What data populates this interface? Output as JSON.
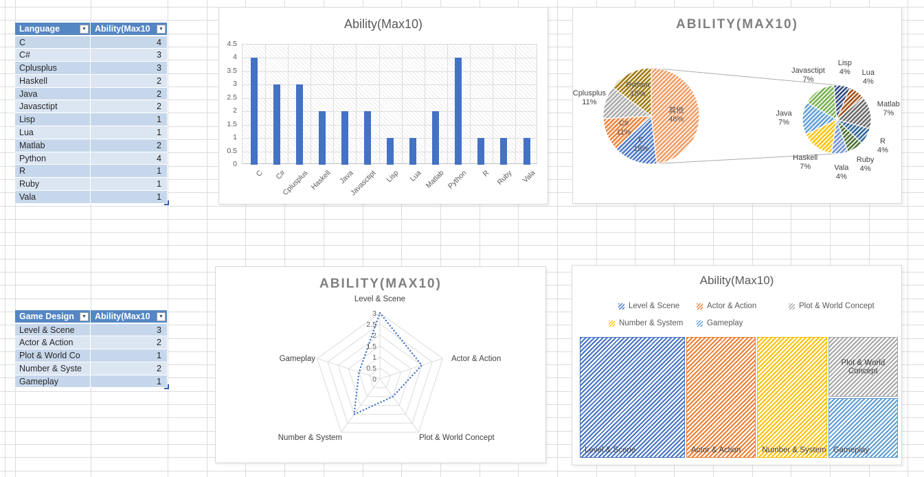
{
  "icons": {
    "filter_dropdown": "▼"
  },
  "colors": {
    "table_header_bg": "#5586C4",
    "table_band_dark": "#C7D7EB",
    "table_band_light": "#DCE6F3",
    "gridline": "#D9DCE0",
    "chart_title": "#595959",
    "accent_blue": "#4472C4",
    "accent_orange": "#ED7D31",
    "accent_gray": "#A5A5A5",
    "accent_gold": "#FFC000",
    "accent_lightblue": "#5B9BD5",
    "accent_green": "#70AD47"
  },
  "tables": {
    "language_table": {
      "headers": [
        "Language",
        "Ability(Max10"
      ],
      "rows": [
        [
          "C",
          "4"
        ],
        [
          "C#",
          "3"
        ],
        [
          "Cplusplus",
          "3"
        ],
        [
          "Haskell",
          "2"
        ],
        [
          "Java",
          "2"
        ],
        [
          "Javasctipt",
          "2"
        ],
        [
          "Lisp",
          "1"
        ],
        [
          "Lua",
          "1"
        ],
        [
          "Matlab",
          "2"
        ],
        [
          "Python",
          "4"
        ],
        [
          "R",
          "1"
        ],
        [
          "Ruby",
          "1"
        ],
        [
          "Vala",
          "1"
        ]
      ]
    },
    "game_table": {
      "headers": [
        "Game Design",
        "Ability(Max10"
      ],
      "rows": [
        [
          "Level & Scene",
          "3"
        ],
        [
          "Actor & Action",
          "2"
        ],
        [
          "Plot & World Co",
          "1"
        ],
        [
          "Number & Syste",
          "2"
        ],
        [
          "Gameplay",
          "1"
        ]
      ]
    }
  },
  "chart_data": [
    {
      "type": "bar",
      "title": "Ability(Max10)",
      "categories": [
        "C",
        "C#",
        "Cplusplus",
        "Haskell",
        "Java",
        "Javasctipt",
        "Lisp",
        "Lua",
        "Matlab",
        "Python",
        "R",
        "Ruby",
        "Vala"
      ],
      "values": [
        4,
        3,
        3,
        2,
        2,
        2,
        1,
        1,
        2,
        4,
        1,
        1,
        1
      ],
      "xlabel": "",
      "ylabel": "",
      "ylim": [
        0,
        4.5
      ],
      "ytick_step": 0.5,
      "bar_color": "#4472C4",
      "grid": true,
      "plot_area_hatched": true
    },
    {
      "type": "pie-of-pie",
      "title": "ABILITY(MAX10)",
      "main": {
        "start_angle": 0,
        "slices": [
          {
            "label": "其他",
            "pct": "48%",
            "value": 13,
            "color": "#F1975A",
            "label_r": 0.52
          },
          {
            "label": "C",
            "pct": "15%",
            "value": 4,
            "color": "#4472C4"
          },
          {
            "label": "C#",
            "pct": "11%",
            "value": 3,
            "color": "#ED7D31"
          },
          {
            "label": "Cplusplus",
            "pct": "11%",
            "value": 3,
            "color": "#A5A5A5",
            "label_out": true
          },
          {
            "label": "Python",
            "pct": "15%",
            "value": 4,
            "color": "#997300"
          }
        ]
      },
      "secondary": {
        "start_angle": 188.8,
        "slices": [
          {
            "label": "Haskell",
            "pct": "7%",
            "value": 2,
            "color": "#FFC000",
            "label_out": true
          },
          {
            "label": "Java",
            "pct": "7%",
            "value": 2,
            "color": "#5B9BD5",
            "label_out": true
          },
          {
            "label": "Javasctipt",
            "pct": "7%",
            "value": 2,
            "color": "#70AD47",
            "label_out": true
          },
          {
            "label": "Lisp",
            "pct": "4%",
            "value": 1,
            "color": "#264478",
            "label_out": true
          },
          {
            "label": "Lua",
            "pct": "4%",
            "value": 1,
            "color": "#9E480E",
            "label_out": true
          },
          {
            "label": "Matlab",
            "pct": "7%",
            "value": 2,
            "color": "#636363",
            "label_out": true
          },
          {
            "label": "R",
            "pct": "4%",
            "value": 1,
            "color": "#255E91",
            "label_out": true
          },
          {
            "label": "Ruby",
            "pct": "4%",
            "value": 1,
            "color": "#43682B",
            "label_out": true
          },
          {
            "label": "Vala",
            "pct": "4%",
            "value": 1,
            "color": "#698ED0",
            "label_out": true
          }
        ]
      }
    },
    {
      "type": "radar",
      "title": "ABILITY(MAX10)",
      "categories": [
        "Level & Scene",
        "Actor & Action",
        "Plot & World Concept",
        "Number & System",
        "Gameplay"
      ],
      "values": [
        3,
        2,
        1,
        2,
        1
      ],
      "rmax": 3,
      "rtick_step": 0.5,
      "line_color": "#4472C4",
      "line_style": "dotted"
    },
    {
      "type": "treemap",
      "title": "Ability(Max10)",
      "legend": [
        {
          "label": "Level & Scene",
          "color": "#4472C4"
        },
        {
          "label": "Actor & Action",
          "color": "#ED7D31"
        },
        {
          "label": "Plot & World Concept",
          "color": "#A5A5A5"
        },
        {
          "label": "Number & System",
          "color": "#FFC000"
        },
        {
          "label": "Gameplay",
          "color": "#5B9BD5"
        }
      ],
      "blocks": [
        {
          "label": "Level & Scene",
          "value": 3,
          "color": "#4472C4"
        },
        {
          "label": "Actor & Action",
          "value": 2,
          "color": "#ED7D31"
        },
        {
          "label": "Number & System",
          "value": 2,
          "color": "#FFC000"
        },
        {
          "label": "Plot & World Concept",
          "value": 1,
          "color": "#A5A5A5"
        },
        {
          "label": "Gameplay",
          "value": 1,
          "color": "#5B9BD5"
        }
      ]
    }
  ]
}
